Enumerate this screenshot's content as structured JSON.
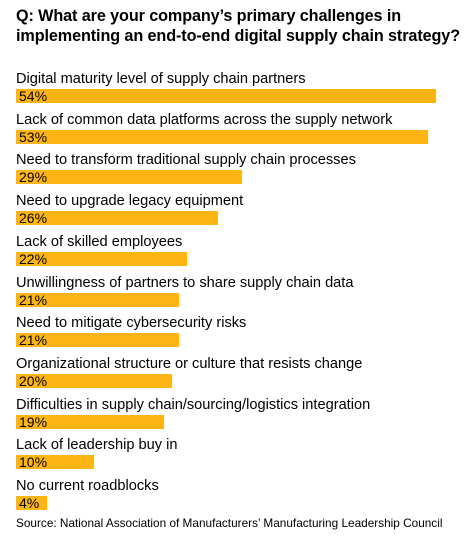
{
  "chart_data": {
    "type": "bar",
    "orientation": "horizontal",
    "title": "Q: What are your company’s primary challenges in implementing an end-to-end digital supply chain strategy?",
    "categories": [
      "Digital maturity level of supply chain partners",
      "Lack of common data platforms across the supply network",
      "Need to transform traditional supply chain processes",
      "Need to upgrade legacy equipment",
      "Lack of skilled employees",
      "Unwillingness of partners to share supply chain data",
      "Need to mitigate cybersecurity risks",
      "Organizational structure or culture that resists change",
      "Difficulties in supply chain/sourcing/logistics integration",
      "Lack of leadership buy in",
      "No current roadblocks"
    ],
    "values": [
      54,
      53,
      29,
      26,
      22,
      21,
      21,
      20,
      19,
      10,
      4
    ],
    "value_labels": [
      "54%",
      "53%",
      "29%",
      "26%",
      "22%",
      "21%",
      "21%",
      "20%",
      "19%",
      "10%",
      "4%"
    ],
    "unit": "%",
    "xlim": [
      0,
      54
    ],
    "grid": false,
    "legend": "none",
    "bar_color": "#FDB515",
    "source": "Source: National Association of Manufacturers’ Manufacturing Leadership Council"
  }
}
